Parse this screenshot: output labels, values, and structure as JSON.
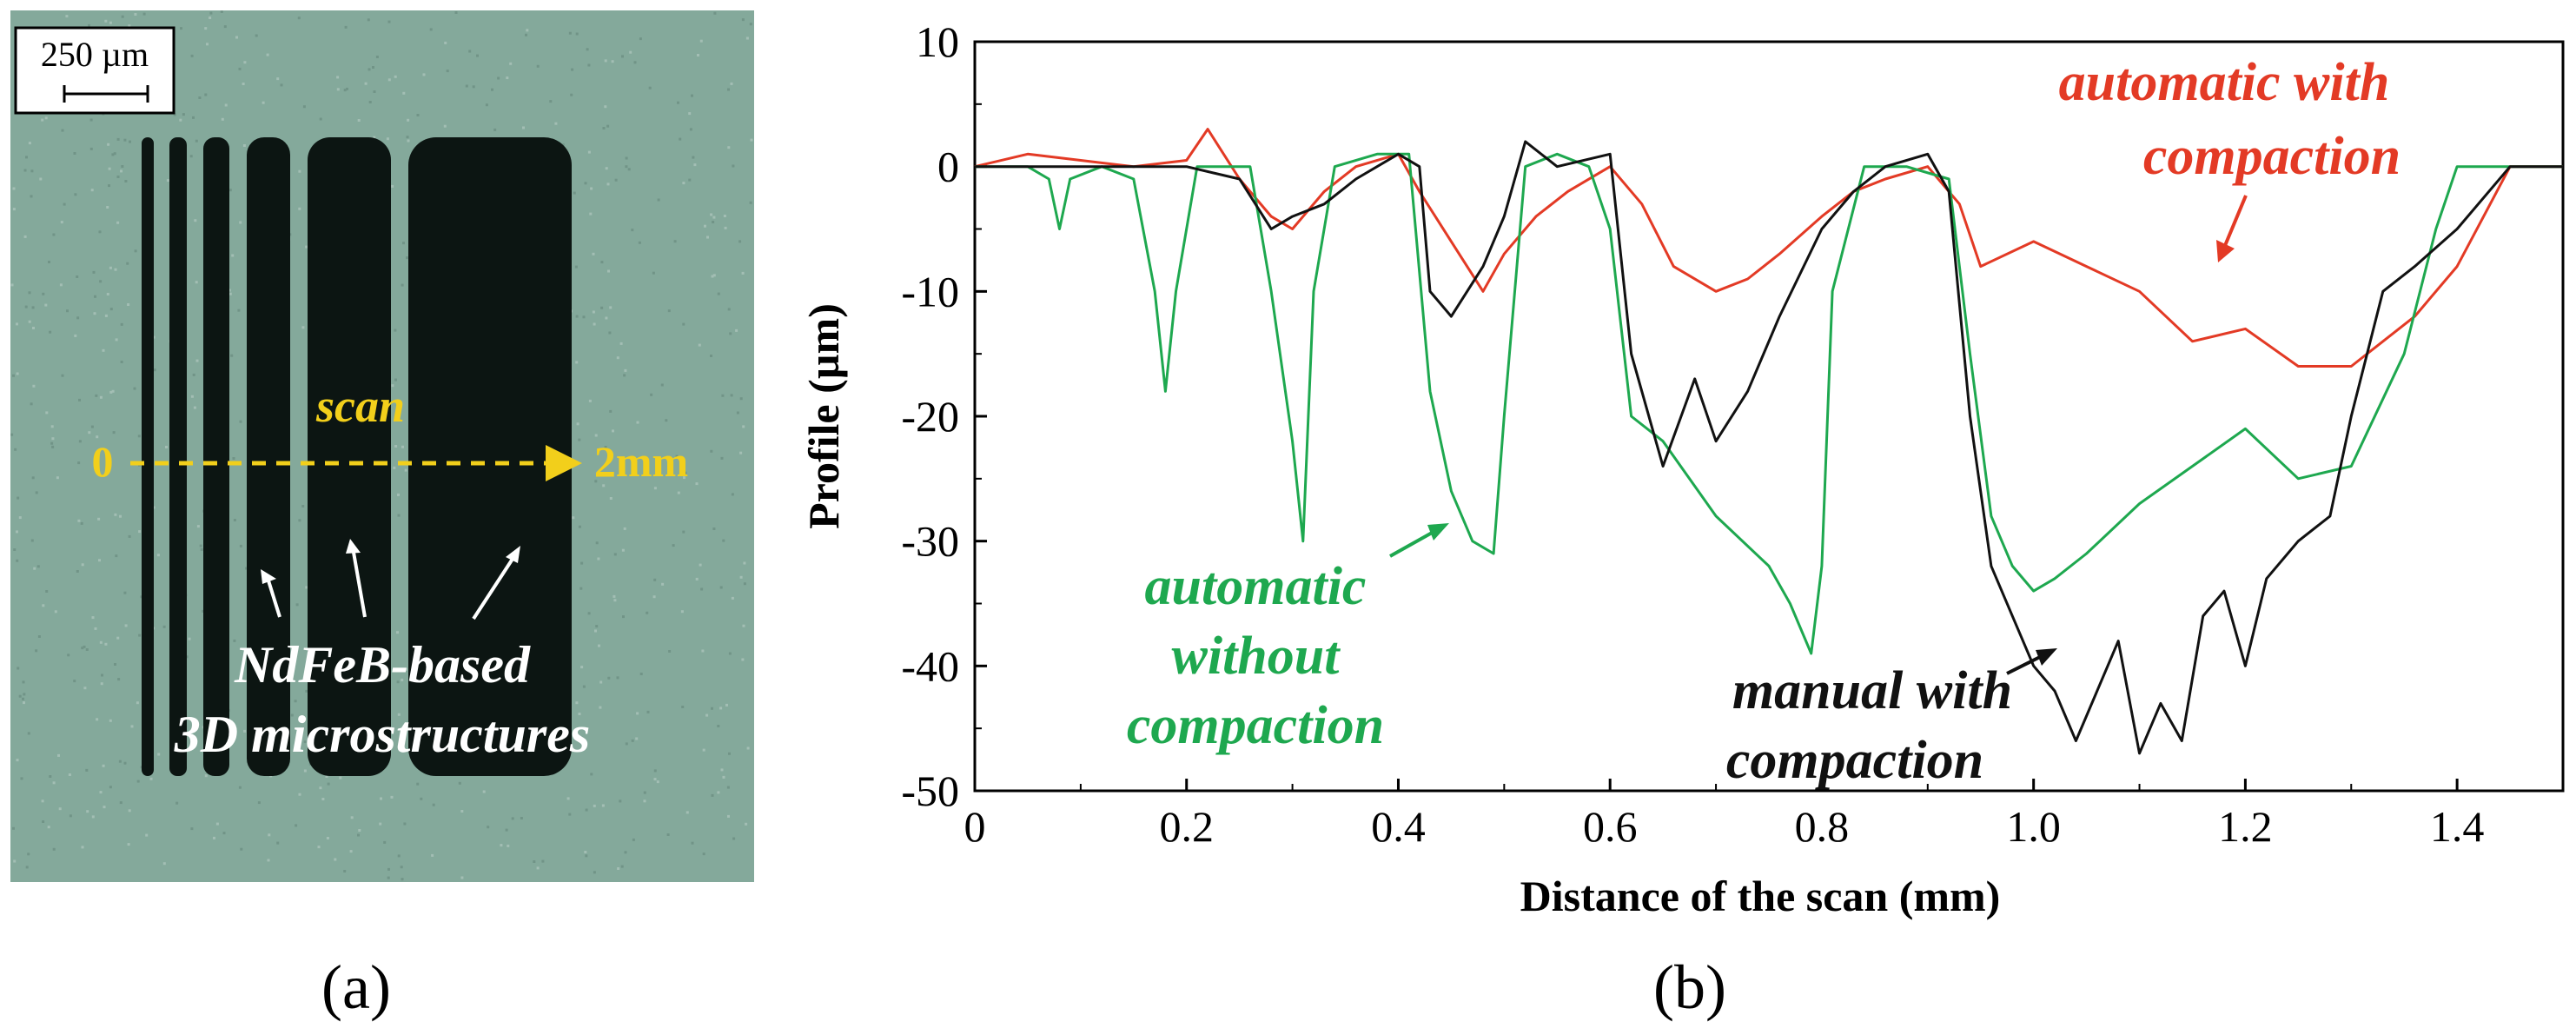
{
  "panel_a": {
    "label": "(a)",
    "scale_bar_text": "250 µm",
    "scan_label": "scan",
    "scan_start": "0",
    "scan_end": "2mm",
    "annotation_line1": "NdFeB-based",
    "annotation_line2": "3D microstructures",
    "colors": {
      "background": "#84a99b",
      "bars": "#0c1512",
      "scan": "#f2cf1b",
      "annotation": "#ffffff"
    }
  },
  "panel_b": {
    "label": "(b)"
  },
  "chart_data": {
    "type": "line",
    "title": "",
    "xlabel": "Distance of the scan (mm)",
    "ylabel": "Profile (µm)",
    "xlim": [
      0,
      1.5
    ],
    "ylim": [
      -50,
      10
    ],
    "xticks": [
      0,
      0.2,
      0.4,
      0.6,
      0.8,
      1.0,
      1.2,
      1.4
    ],
    "xtick_labels": [
      "0",
      "0.2",
      "0.4",
      "0.6",
      "0.8",
      "1.0",
      "1.2",
      "1.4"
    ],
    "yticks": [
      10,
      0,
      -10,
      -20,
      -30,
      -40,
      -50
    ],
    "ytick_labels": [
      "10",
      "0",
      "-10",
      "-20",
      "-30",
      "-40",
      "-50"
    ],
    "grid": false,
    "legend": "none (inline annotations)",
    "annotations": [
      {
        "text_line1": "automatic with",
        "text_line2": "compaction",
        "color": "#e33a25"
      },
      {
        "text_line1": "automatic",
        "text_line2": "without",
        "text_line3": "compaction",
        "color": "#1ea84f"
      },
      {
        "text_line1": "manual with",
        "text_line2": "compaction",
        "color": "#111111"
      }
    ],
    "series": [
      {
        "color": "#e33a25",
        "x": [
          0,
          0.05,
          0.1,
          0.15,
          0.2,
          0.22,
          0.25,
          0.28,
          0.3,
          0.33,
          0.36,
          0.4,
          0.42,
          0.45,
          0.48,
          0.5,
          0.53,
          0.56,
          0.6,
          0.63,
          0.66,
          0.7,
          0.73,
          0.76,
          0.8,
          0.83,
          0.86,
          0.9,
          0.93,
          0.95,
          1.0,
          1.05,
          1.1,
          1.15,
          1.2,
          1.25,
          1.3,
          1.33,
          1.36,
          1.4,
          1.45,
          1.5
        ],
        "y": [
          0,
          1,
          0.5,
          0,
          0.5,
          3,
          -1,
          -4,
          -5,
          -2,
          0,
          1,
          -2,
          -6,
          -10,
          -7,
          -4,
          -2,
          0,
          -3,
          -8,
          -10,
          -9,
          -7,
          -4,
          -2,
          -1,
          0,
          -3,
          -8,
          -6,
          -8,
          -10,
          -14,
          -13,
          -16,
          -16,
          -14,
          -12,
          -8,
          0,
          0
        ]
      },
      {
        "color": "#1ea84f",
        "x": [
          0,
          0.05,
          0.07,
          0.08,
          0.09,
          0.12,
          0.15,
          0.17,
          0.18,
          0.19,
          0.21,
          0.24,
          0.26,
          0.28,
          0.3,
          0.31,
          0.32,
          0.34,
          0.38,
          0.41,
          0.43,
          0.45,
          0.47,
          0.49,
          0.5,
          0.52,
          0.55,
          0.58,
          0.6,
          0.62,
          0.65,
          0.7,
          0.75,
          0.77,
          0.79,
          0.8,
          0.81,
          0.84,
          0.88,
          0.92,
          0.94,
          0.96,
          0.98,
          1.0,
          1.02,
          1.05,
          1.1,
          1.15,
          1.2,
          1.25,
          1.3,
          1.35,
          1.38,
          1.4,
          1.45,
          1.5
        ],
        "y": [
          0,
          0,
          -1,
          -5,
          -1,
          0,
          -1,
          -10,
          -18,
          -10,
          0,
          0,
          0,
          -10,
          -22,
          -30,
          -10,
          0,
          1,
          1,
          -18,
          -26,
          -30,
          -31,
          -20,
          0,
          1,
          0,
          -5,
          -20,
          -22,
          -28,
          -32,
          -35,
          -39,
          -32,
          -10,
          0,
          0,
          -1,
          -15,
          -28,
          -32,
          -34,
          -33,
          -31,
          -27,
          -24,
          -21,
          -25,
          -24,
          -15,
          -5,
          0,
          0,
          0
        ]
      },
      {
        "color": "#111111",
        "x": [
          0,
          0.05,
          0.1,
          0.15,
          0.2,
          0.25,
          0.28,
          0.3,
          0.33,
          0.36,
          0.4,
          0.42,
          0.43,
          0.45,
          0.48,
          0.5,
          0.52,
          0.55,
          0.6,
          0.62,
          0.65,
          0.68,
          0.7,
          0.73,
          0.76,
          0.8,
          0.83,
          0.86,
          0.9,
          0.92,
          0.94,
          0.96,
          0.98,
          1.0,
          1.02,
          1.04,
          1.06,
          1.08,
          1.1,
          1.12,
          1.14,
          1.16,
          1.18,
          1.2,
          1.22,
          1.25,
          1.28,
          1.3,
          1.33,
          1.36,
          1.4,
          1.45,
          1.5
        ],
        "y": [
          0,
          0,
          0,
          0,
          0,
          -1,
          -5,
          -4,
          -3,
          -1,
          1,
          0,
          -10,
          -12,
          -8,
          -4,
          2,
          0,
          1,
          -15,
          -24,
          -17,
          -22,
          -18,
          -12,
          -5,
          -2,
          0,
          1,
          -2,
          -20,
          -32,
          -36,
          -40,
          -42,
          -46,
          -42,
          -38,
          -47,
          -43,
          -46,
          -36,
          -34,
          -40,
          -33,
          -30,
          -28,
          -20,
          -10,
          -8,
          -5,
          0,
          0
        ]
      }
    ]
  }
}
